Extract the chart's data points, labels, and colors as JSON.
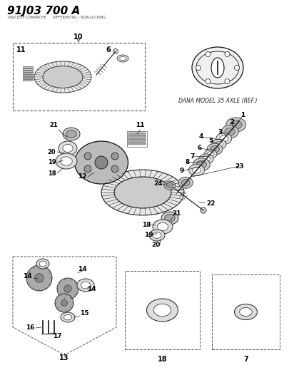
{
  "title": "91J03 700 A",
  "bg_color": "#ffffff",
  "title_color": "#000000",
  "dana_label": "DANA MODEL 35 AXLE (REF.)"
}
